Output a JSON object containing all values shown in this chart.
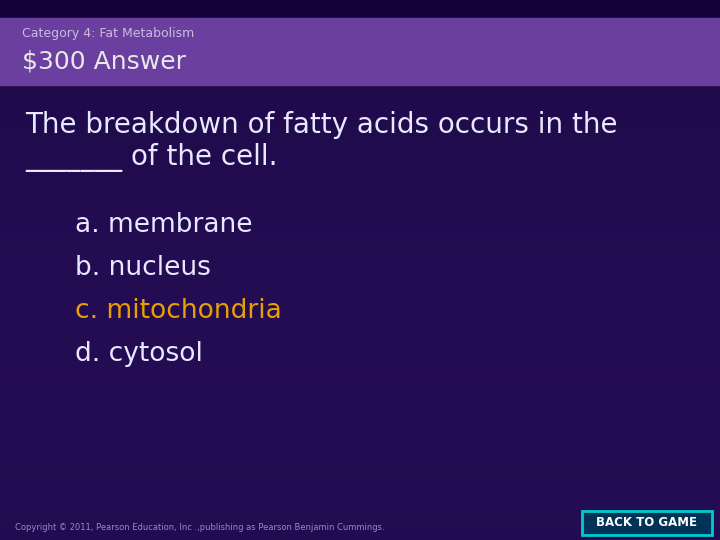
{
  "bg_color": "#1e0a4a",
  "header_color": "#6b3fa0",
  "header_top_color": "#15003a",
  "title_small": "Category 4: Fat Metabolism",
  "title_large": "$300 Answer",
  "question_line1": "The breakdown of fatty acids occurs in the",
  "question_line2": "_______ of the cell.",
  "answers": [
    {
      "label": "a. membrane",
      "color": "#e8e8ff"
    },
    {
      "label": "b. nucleus",
      "color": "#e8e8ff"
    },
    {
      "label": "c. mitochondria",
      "color": "#e8a000"
    },
    {
      "label": "d. cytosol",
      "color": "#e8e8ff"
    }
  ],
  "copyright": "Copyright © 2011, Pearson Education, Inc .,publishing as Pearson Benjamin Cummings.",
  "back_btn_text": "BACK TO GAME",
  "back_btn_bg": "#003355",
  "back_btn_border": "#00cccc",
  "question_color": "#e8e8ff",
  "header_text_color": "#ccbbdd",
  "title_large_color": "#e8e8e8",
  "fig_width": 7.2,
  "fig_height": 5.4,
  "dpi": 100
}
